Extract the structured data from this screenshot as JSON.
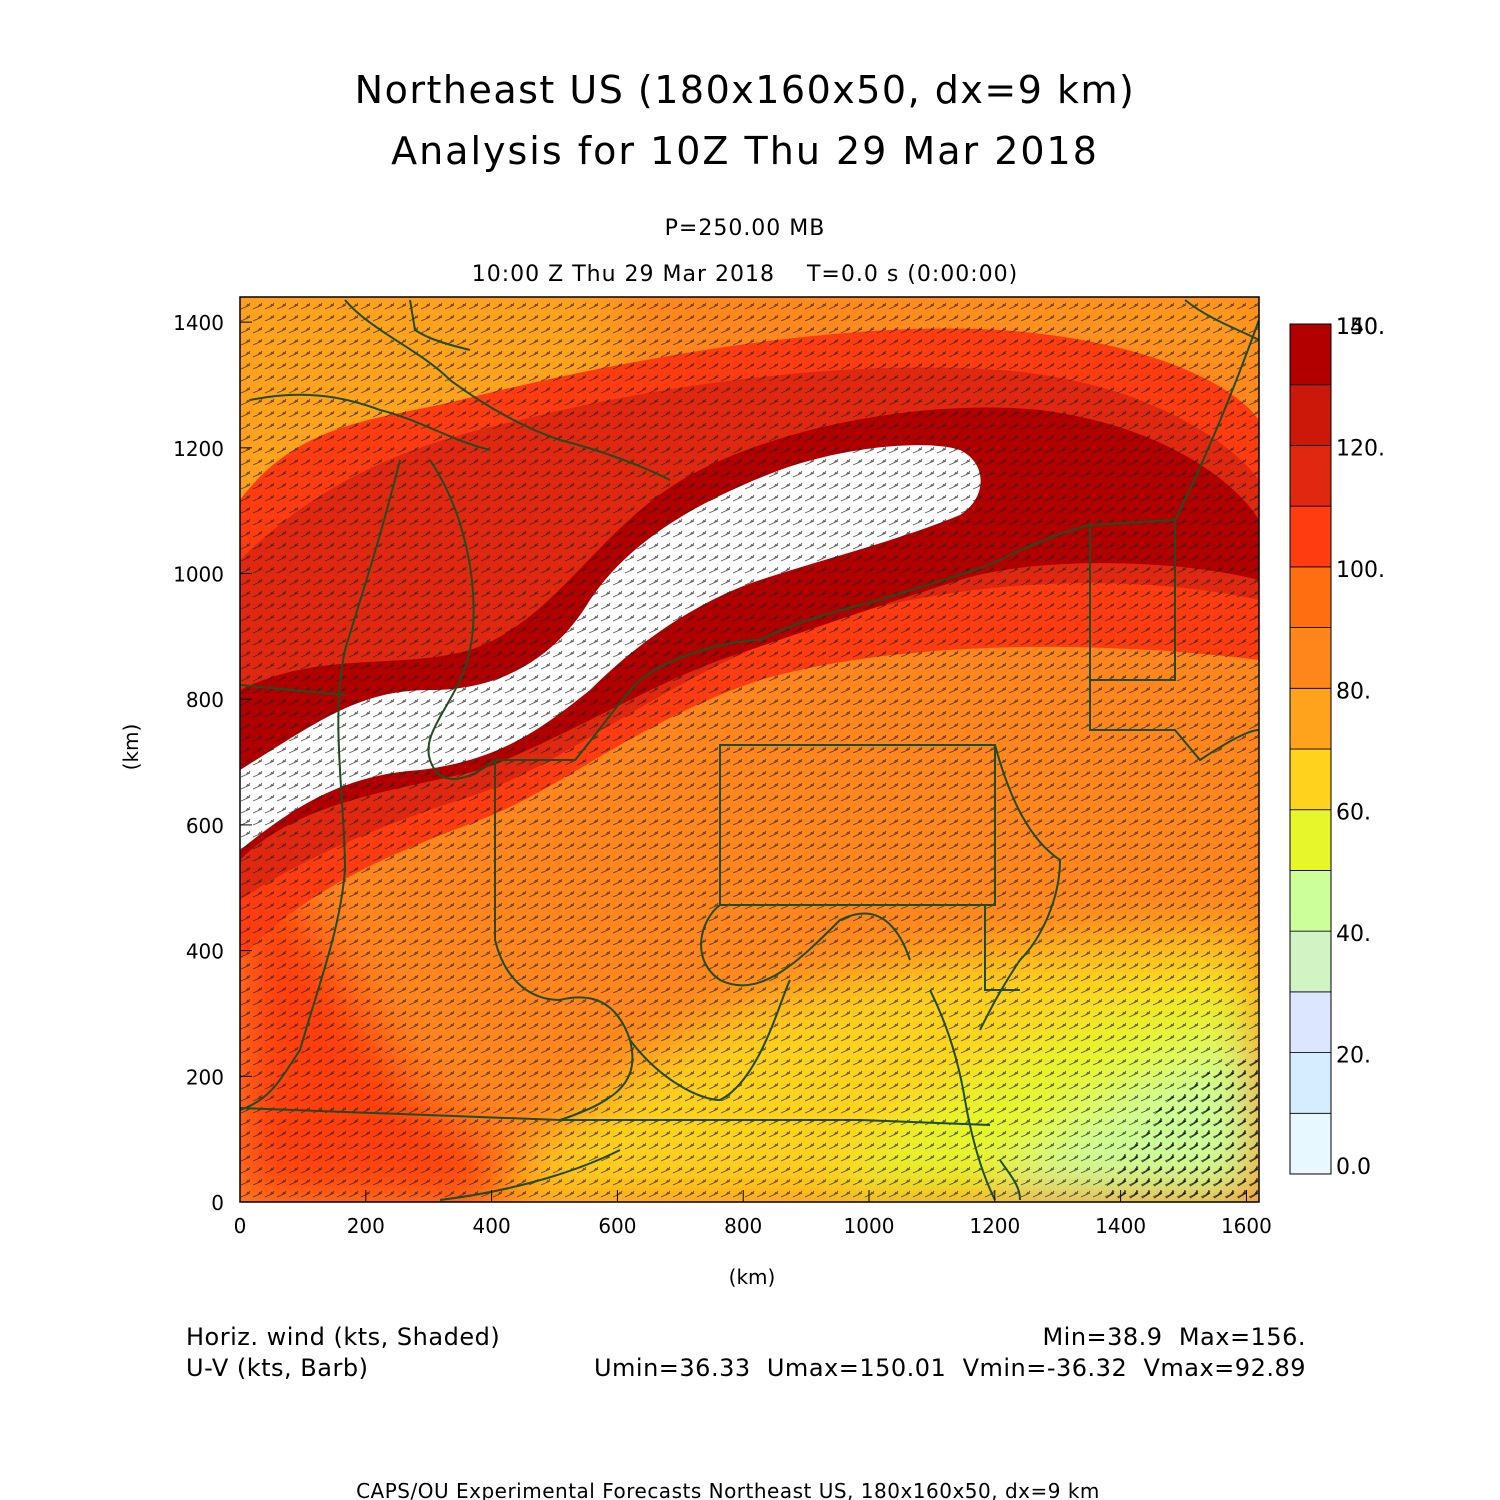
{
  "header": {
    "title_line1": "Northeast US (180x160x50, dx=9 km)",
    "title_line2": "Analysis for 10Z Thu 29 Mar 2018",
    "level": "P=250.00 MB",
    "time_line": "10:00 Z Thu 29 Mar 2018    T=0.0 s (0:00:00)"
  },
  "axes": {
    "x_label": "(km)",
    "y_label": "(km)",
    "x_ticks": [
      "0",
      "200",
      "400",
      "600",
      "800",
      "1000",
      "1200",
      "1400",
      "1600"
    ],
    "y_ticks": [
      "0",
      "200",
      "400",
      "600",
      "800",
      "1000",
      "1200",
      "1400"
    ],
    "x_range": [
      0,
      1620
    ],
    "y_range": [
      0,
      1440
    ]
  },
  "colorbar": {
    "labels": [
      "0.0",
      "20.",
      "40.",
      "60.",
      "80.",
      "100.",
      "120.",
      "140.",
      "150."
    ],
    "colors": [
      "#e8f8ff",
      "#d6ecff",
      "#dde6ff",
      "#d2f3c4",
      "#ccff99",
      "#e6f62a",
      "#ffd21e",
      "#ffa21c",
      "#ff861a",
      "#ff6e10",
      "#ff3c10",
      "#e02810",
      "#cc1808",
      "#b20000"
    ]
  },
  "footer": {
    "left_line1": "Horiz. wind (kts, Shaded)",
    "left_line2": "U-V (kts, Barb)",
    "right_line1": "Min=38.9  Max=156.",
    "right_line2": "Umin=36.33  Umax=150.01  Vmin=-36.32  Vmax=92.89",
    "credit": "CAPS/OU Experimental Forecasts  Northeast US, 180x160x50, dx=9 km"
  },
  "chart_data": {
    "type": "heatmap",
    "field": "Horiz. wind",
    "units": "kts",
    "min": 38.9,
    "max": 156,
    "u_min": 36.33,
    "u_max": 150.01,
    "v_min": -36.32,
    "v_max": 92.89,
    "xlim": [
      0,
      1620
    ],
    "ylim": [
      0,
      1440
    ],
    "contour_levels": [
      0,
      20,
      40,
      60,
      80,
      100,
      120,
      140,
      150
    ]
  }
}
